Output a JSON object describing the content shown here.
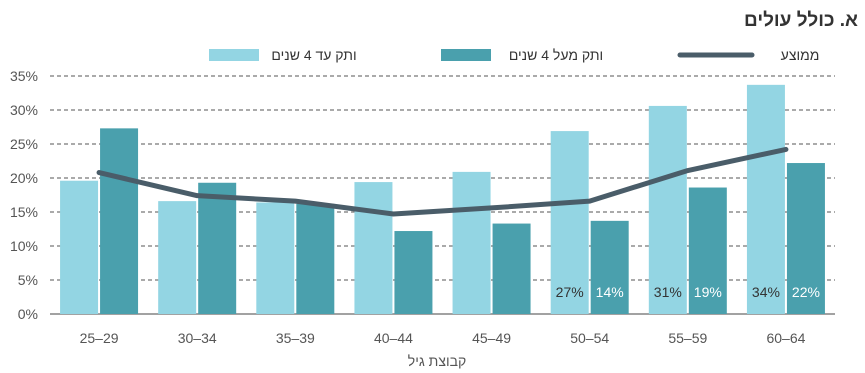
{
  "chart_data": {
    "type": "bar",
    "title": "א. כולל עולים",
    "xlabel": "קבוצת גיל",
    "ylabel": "",
    "ylim": [
      0,
      35
    ],
    "yticks": [
      "0%",
      "5%",
      "10%",
      "15%",
      "20%",
      "25%",
      "30%",
      "35%"
    ],
    "grid": "horizontal-dashed",
    "legend_position": "top",
    "categories": [
      "25–29",
      "30–34",
      "35–39",
      "40–44",
      "45–49",
      "50–54",
      "55–59",
      "60–64"
    ],
    "series": [
      {
        "name": "ותק עד 4 שנים",
        "type": "bar",
        "color": "#93d5e3",
        "values": [
          19.6,
          16.6,
          16.4,
          19.4,
          20.9,
          26.9,
          30.6,
          33.7
        ]
      },
      {
        "name": "ותק מעל 4 שנים",
        "type": "bar",
        "color": "#4aa0ad",
        "values": [
          27.3,
          19.3,
          16.2,
          12.2,
          13.3,
          13.7,
          18.6,
          22.2
        ]
      },
      {
        "name": "ממוצע",
        "type": "line",
        "color": "#4a5d69",
        "values": [
          20.8,
          17.4,
          16.6,
          14.7,
          15.6,
          16.6,
          21.1,
          24.2
        ]
      }
    ],
    "data_labels": [
      {
        "category": "50–54",
        "light": "27%",
        "dark": "14%"
      },
      {
        "category": "55–59",
        "light": "31%",
        "dark": "19%"
      },
      {
        "category": "60–64",
        "light": "34%",
        "dark": "22%"
      }
    ]
  }
}
